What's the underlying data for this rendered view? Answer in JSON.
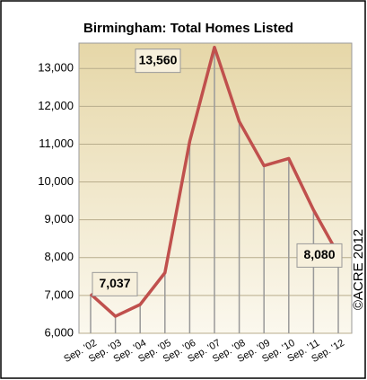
{
  "chart_data": {
    "type": "line",
    "title": "Birmingham: Total Homes Listed",
    "categories": [
      "Sep. '02",
      "Sep. '03",
      "Sep. '04",
      "Sep. '05",
      "Sep. '06",
      "Sep. '07",
      "Sep. '08",
      "Sep. '09",
      "Sep. '10",
      "Sep. '11",
      "Sep. '12"
    ],
    "series": [
      {
        "name": "Total Homes Listed",
        "color": "#c0504d",
        "values": [
          7037,
          6450,
          6760,
          7600,
          11070,
          13560,
          11600,
          10430,
          10620,
          9260,
          8080
        ],
        "value_labels": [
          "7,037",
          null,
          null,
          null,
          null,
          "13,560",
          null,
          null,
          null,
          null,
          "8,080"
        ]
      }
    ],
    "ylim": [
      6000,
      13670
    ],
    "yticks": [
      {
        "value": 6000,
        "label": "6,000"
      },
      {
        "value": 7000,
        "label": "7,000"
      },
      {
        "value": 8000,
        "label": "8,000"
      },
      {
        "value": 9000,
        "label": "9,000"
      },
      {
        "value": 10000,
        "label": "10,000"
      },
      {
        "value": 11000,
        "label": "11,000"
      },
      {
        "value": 12000,
        "label": "12,000"
      },
      {
        "value": 13000,
        "label": "13,000"
      }
    ],
    "grid": true,
    "annotations": [
      "©ACRE 2012"
    ]
  }
}
